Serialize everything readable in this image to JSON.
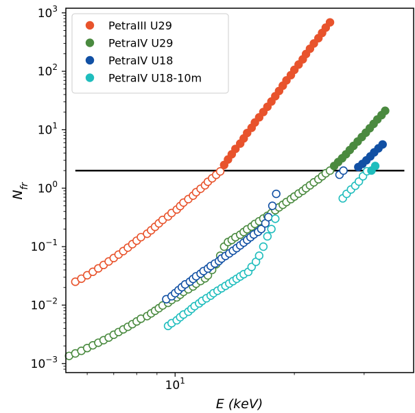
{
  "chart_data": {
    "type": "scatter",
    "xlabel": "E (keV)",
    "ylabel": "N_fr",
    "x_scale": "log",
    "y_scale": "log",
    "xlim": [
      5.3,
      40
    ],
    "ylim": [
      0.0007,
      1200
    ],
    "x_ticks": [
      {
        "value": 10,
        "label": "10",
        "exp": "1"
      }
    ],
    "y_ticks": [
      {
        "value": 0.001,
        "label": "10",
        "exp": "−3"
      },
      {
        "value": 0.01,
        "label": "10",
        "exp": "−2"
      },
      {
        "value": 0.1,
        "label": "10",
        "exp": "−1"
      },
      {
        "value": 1,
        "label": "10",
        "exp": "0"
      },
      {
        "value": 10,
        "label": "10",
        "exp": "1"
      },
      {
        "value": 100,
        "label": "10",
        "exp": "2"
      },
      {
        "value": 1000,
        "label": "10",
        "exp": "3"
      }
    ],
    "legend_position": "top-left",
    "threshold": {
      "value": 2,
      "x_range": [
        5.6,
        37.9
      ],
      "color": "#000000"
    },
    "series": [
      {
        "name": "PetraIII U29",
        "color": "#e8532c",
        "open": [
          [
            5.6,
            0.0251
          ],
          [
            5.8,
            0.0283
          ],
          [
            6.0,
            0.0324
          ],
          [
            6.2,
            0.0371
          ],
          [
            6.4,
            0.0425
          ],
          [
            6.6,
            0.0486
          ],
          [
            6.8,
            0.0558
          ],
          [
            7.0,
            0.0639
          ],
          [
            7.2,
            0.0732
          ],
          [
            7.4,
            0.084
          ],
          [
            7.6,
            0.0962
          ],
          [
            7.8,
            0.1102
          ],
          [
            8.0,
            0.1265
          ],
          [
            8.2,
            0.1452
          ],
          [
            8.5,
            0.1663
          ],
          [
            8.7,
            0.1905
          ],
          [
            8.9,
            0.2182
          ],
          [
            9.1,
            0.2502
          ],
          [
            9.3,
            0.2866
          ],
          [
            9.6,
            0.3283
          ],
          [
            9.8,
            0.3765
          ],
          [
            10.1,
            0.4318
          ],
          [
            10.3,
            0.4948
          ],
          [
            10.5,
            0.567
          ],
          [
            10.8,
            0.6503
          ],
          [
            11.1,
            0.7453
          ],
          [
            11.3,
            0.8541
          ],
          [
            11.6,
            0.9791
          ],
          [
            11.9,
            1.1224
          ],
          [
            12.1,
            1.2868
          ],
          [
            12.4,
            1.4749
          ],
          [
            12.7,
            1.6911
          ],
          [
            13.0,
            1.9387
          ]
        ],
        "filled": [
          [
            13.3,
            2.5
          ],
          [
            13.6,
            3.1
          ],
          [
            13.9,
            3.8
          ],
          [
            14.2,
            4.7
          ],
          [
            14.6,
            5.8
          ],
          [
            14.9,
            7.1
          ],
          [
            15.2,
            8.8
          ],
          [
            15.6,
            10.8
          ],
          [
            15.9,
            13.3
          ],
          [
            16.3,
            16.3
          ],
          [
            16.7,
            20.1
          ],
          [
            17.1,
            24.7
          ],
          [
            17.5,
            30.4
          ],
          [
            17.9,
            37.5
          ],
          [
            18.3,
            46.1
          ],
          [
            18.7,
            56.7
          ],
          [
            19.1,
            69.9
          ],
          [
            19.6,
            86.0
          ],
          [
            20.0,
            105.9
          ],
          [
            20.5,
            130.4
          ],
          [
            21.0,
            160.4
          ],
          [
            21.4,
            197.5
          ],
          [
            21.9,
            243.2
          ],
          [
            22.4,
            299.3
          ],
          [
            23.0,
            368.5
          ],
          [
            23.5,
            453.6
          ],
          [
            24.0,
            558.4
          ],
          [
            24.6,
            687.4
          ]
        ]
      },
      {
        "name": "PetraIV U29",
        "color": "#4a8a3f",
        "open": [
          [
            5.4,
            0.00135
          ],
          [
            5.6,
            0.00149
          ],
          [
            5.8,
            0.00165
          ],
          [
            6.0,
            0.00184
          ],
          [
            6.2,
            0.00205
          ],
          [
            6.4,
            0.00227
          ],
          [
            6.6,
            0.00251
          ],
          [
            6.8,
            0.00278
          ],
          [
            7.0,
            0.00311
          ],
          [
            7.2,
            0.00346
          ],
          [
            7.4,
            0.00384
          ],
          [
            7.6,
            0.00425
          ],
          [
            7.8,
            0.00472
          ],
          [
            8.0,
            0.00525
          ],
          [
            8.2,
            0.00585
          ],
          [
            8.5,
            0.00648
          ],
          [
            8.7,
            0.00722
          ],
          [
            8.9,
            0.00799
          ],
          [
            9.1,
            0.00885
          ],
          [
            9.3,
            0.00986
          ],
          [
            9.6,
            0.01094
          ],
          [
            9.8,
            0.01221
          ],
          [
            10.1,
            0.01357
          ],
          [
            10.3,
            0.01506
          ],
          [
            10.5,
            0.01684
          ],
          [
            10.8,
            0.01864
          ],
          [
            11.1,
            0.02081
          ],
          [
            11.3,
            0.02318
          ],
          [
            11.6,
            0.02583
          ],
          [
            11.9,
            0.0287
          ],
          [
            12.1,
            0.0322
          ],
          [
            12.4,
            0.04
          ],
          [
            12.7,
            0.05
          ],
          [
            13.0,
            0.07
          ],
          [
            13.3,
            0.1
          ],
          [
            13.6,
            0.12
          ],
          [
            13.9,
            0.13
          ],
          [
            14.2,
            0.145
          ],
          [
            14.6,
            0.16
          ],
          [
            14.9,
            0.178
          ],
          [
            15.2,
            0.198
          ],
          [
            15.6,
            0.22
          ],
          [
            15.9,
            0.245
          ],
          [
            16.3,
            0.272
          ],
          [
            16.7,
            0.303
          ],
          [
            17.1,
            0.337
          ],
          [
            17.5,
            0.375
          ],
          [
            17.9,
            0.42
          ],
          [
            18.3,
            0.47
          ],
          [
            18.7,
            0.52
          ],
          [
            19.1,
            0.58
          ],
          [
            19.6,
            0.65
          ],
          [
            20.0,
            0.72
          ],
          [
            20.5,
            0.81
          ],
          [
            21.0,
            0.9
          ],
          [
            21.4,
            1.0
          ],
          [
            21.9,
            1.12
          ],
          [
            22.4,
            1.26
          ],
          [
            23.0,
            1.42
          ],
          [
            23.5,
            1.6
          ],
          [
            24.0,
            1.8
          ],
          [
            24.6,
            2.0
          ]
        ],
        "filled": [
          [
            25.2,
            2.4
          ],
          [
            25.8,
            2.8
          ],
          [
            26.4,
            3.25
          ],
          [
            27.0,
            3.8
          ],
          [
            27.6,
            4.5
          ],
          [
            28.2,
            5.3
          ],
          [
            28.9,
            6.3
          ],
          [
            29.6,
            7.5
          ],
          [
            30.3,
            8.9
          ],
          [
            31.0,
            10.6
          ],
          [
            31.7,
            12.6
          ],
          [
            32.4,
            15.0
          ],
          [
            33.2,
            17.8
          ],
          [
            33.9,
            21.1
          ]
        ]
      },
      {
        "name": "PetraIV U18",
        "color": "#1150a4",
        "open": [
          [
            9.5,
            0.0126
          ],
          [
            9.8,
            0.0142
          ],
          [
            10.0,
            0.016
          ],
          [
            10.2,
            0.018
          ],
          [
            10.4,
            0.0202
          ],
          [
            10.6,
            0.0226
          ],
          [
            10.9,
            0.0252
          ],
          [
            11.1,
            0.028
          ],
          [
            11.3,
            0.0311
          ],
          [
            11.6,
            0.0345
          ],
          [
            11.8,
            0.0382
          ],
          [
            12.1,
            0.0422
          ],
          [
            12.3,
            0.0466
          ],
          [
            12.6,
            0.0514
          ],
          [
            12.9,
            0.0567
          ],
          [
            13.1,
            0.0626
          ],
          [
            13.4,
            0.0692
          ],
          [
            13.7,
            0.0766
          ],
          [
            14.0,
            0.085
          ],
          [
            14.3,
            0.0945
          ],
          [
            14.6,
            0.1051
          ],
          [
            14.9,
            0.117
          ],
          [
            15.2,
            0.1302
          ],
          [
            15.5,
            0.1449
          ],
          [
            15.8,
            0.1612
          ],
          [
            16.2,
            0.1794
          ],
          [
            16.5,
            0.2
          ],
          [
            16.9,
            0.25
          ],
          [
            17.2,
            0.32
          ],
          [
            17.6,
            0.5
          ],
          [
            18.0,
            0.8
          ],
          [
            26.0,
            1.7
          ],
          [
            26.6,
            2.0
          ]
        ],
        "filled": [
          [
            29.0,
            2.3
          ],
          [
            29.7,
            2.6
          ],
          [
            30.4,
            3.0
          ],
          [
            31.1,
            3.5
          ],
          [
            31.8,
            4.1
          ],
          [
            32.6,
            4.8
          ],
          [
            33.4,
            5.6
          ]
        ]
      },
      {
        "name": "PetraIV U18-10m",
        "color": "#1fbdbd",
        "open": [
          [
            9.6,
            0.0044
          ],
          [
            9.8,
            0.0049
          ],
          [
            10.1,
            0.0055
          ],
          [
            10.3,
            0.0062
          ],
          [
            10.5,
            0.0069
          ],
          [
            10.8,
            0.0077
          ],
          [
            11.0,
            0.0086
          ],
          [
            11.2,
            0.0096
          ],
          [
            11.5,
            0.0107
          ],
          [
            11.7,
            0.0118
          ],
          [
            12.0,
            0.0131
          ],
          [
            12.3,
            0.0145
          ],
          [
            12.5,
            0.016
          ],
          [
            12.8,
            0.0176
          ],
          [
            13.1,
            0.0194
          ],
          [
            13.4,
            0.0213
          ],
          [
            13.7,
            0.0234
          ],
          [
            14.0,
            0.0257
          ],
          [
            14.3,
            0.0282
          ],
          [
            14.6,
            0.0309
          ],
          [
            14.9,
            0.0338
          ],
          [
            15.3,
            0.037
          ],
          [
            15.6,
            0.045
          ],
          [
            16.0,
            0.055
          ],
          [
            16.3,
            0.07
          ],
          [
            16.7,
            0.1
          ],
          [
            17.1,
            0.15
          ],
          [
            17.5,
            0.2
          ],
          [
            17.9,
            0.3
          ],
          [
            26.5,
            0.67
          ],
          [
            27.1,
            0.8
          ],
          [
            27.8,
            0.95
          ],
          [
            28.5,
            1.1
          ],
          [
            29.1,
            1.3
          ],
          [
            29.8,
            1.6
          ],
          [
            30.5,
            1.95
          ]
        ],
        "filled": [
          [
            31.3,
            2.0
          ],
          [
            32.0,
            2.4
          ]
        ]
      }
    ]
  }
}
